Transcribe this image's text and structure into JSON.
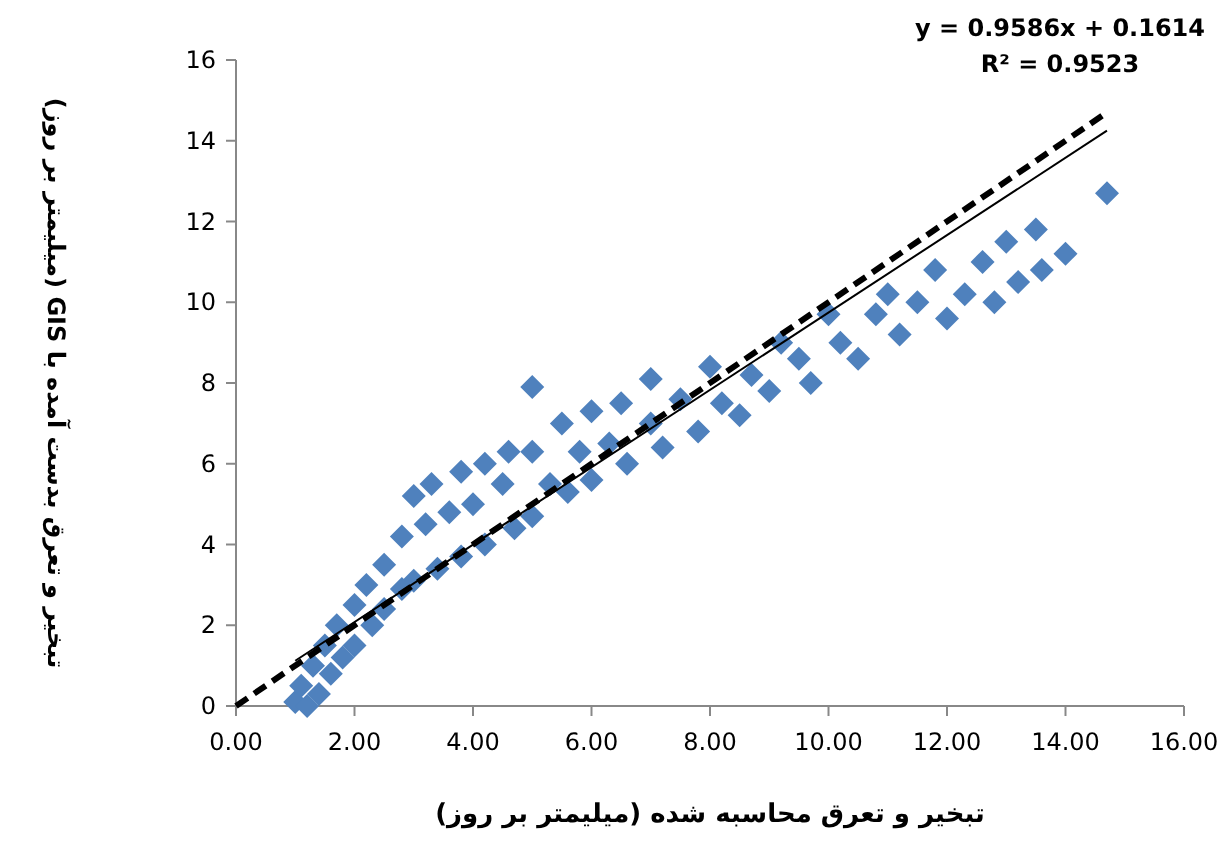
{
  "chart_data": {
    "type": "scatter",
    "xlabel": "تبخیر و تعرق محاسبه شده (میلیمتر بر روز)",
    "ylabel": "تبخیر و تعرق بدست آمده با GIS (میلیمتر بر روز)",
    "annotations": [
      "y = 0.9586x + 0.1614",
      "R² = 0.9523"
    ],
    "xlim": [
      0,
      16
    ],
    "ylim": [
      0,
      16
    ],
    "xticks": [
      {
        "value": 0,
        "label": "0.00"
      },
      {
        "value": 2,
        "label": "2.00"
      },
      {
        "value": 4,
        "label": "4.00"
      },
      {
        "value": 6,
        "label": "6.00"
      },
      {
        "value": 8,
        "label": "8.00"
      },
      {
        "value": 10,
        "label": "10.00"
      },
      {
        "value": 12,
        "label": "12.00"
      },
      {
        "value": 14,
        "label": "14.00"
      },
      {
        "value": 16,
        "label": "16.00"
      }
    ],
    "yticks": [
      0,
      2,
      4,
      6,
      8,
      10,
      12,
      14,
      16
    ],
    "grid": false,
    "series": [
      {
        "color": "#4f81bd",
        "marker": "diamond",
        "x": [
          1.0,
          1.1,
          1.2,
          1.3,
          1.4,
          1.5,
          1.6,
          1.7,
          1.8,
          2.0,
          2.0,
          2.2,
          2.3,
          2.5,
          2.5,
          2.8,
          2.8,
          3.0,
          3.0,
          3.2,
          3.3,
          3.4,
          3.6,
          3.8,
          3.8,
          4.0,
          4.2,
          4.2,
          4.5,
          4.6,
          4.7,
          5.0,
          5.0,
          5.0,
          5.3,
          5.5,
          5.6,
          5.8,
          6.0,
          6.0,
          6.3,
          6.5,
          6.6,
          7.0,
          7.0,
          7.2,
          7.5,
          7.8,
          8.0,
          8.2,
          8.5,
          8.7,
          9.0,
          9.2,
          9.5,
          9.7,
          10.0,
          10.2,
          10.5,
          10.8,
          11.0,
          11.2,
          11.5,
          11.8,
          12.0,
          12.3,
          12.6,
          12.8,
          13.0,
          13.2,
          13.5,
          13.6,
          14.0,
          14.7
        ],
        "values": [
          0.1,
          0.5,
          0.0,
          1.0,
          0.3,
          1.5,
          0.8,
          2.0,
          1.2,
          2.5,
          1.5,
          3.0,
          2.0,
          3.5,
          2.4,
          4.2,
          2.9,
          5.2,
          3.1,
          4.5,
          5.5,
          3.4,
          4.8,
          5.8,
          3.7,
          5.0,
          6.0,
          4.0,
          5.5,
          6.3,
          4.4,
          7.9,
          6.3,
          4.7,
          5.5,
          7.0,
          5.3,
          6.3,
          7.3,
          5.6,
          6.5,
          7.5,
          6.0,
          7.0,
          8.1,
          6.4,
          7.6,
          6.8,
          8.4,
          7.5,
          7.2,
          8.2,
          7.8,
          9.0,
          8.6,
          8.0,
          9.7,
          9.0,
          8.6,
          9.7,
          10.2,
          9.2,
          10.0,
          10.8,
          9.6,
          10.2,
          11.0,
          10.0,
          11.5,
          10.5,
          11.8,
          10.8,
          11.2,
          12.7
        ]
      },
      {
        "type": "line",
        "color": "#000000",
        "line_style": "solid",
        "x": [
          1.0,
          14.7
        ],
        "values": [
          1.12,
          14.25
        ]
      },
      {
        "type": "line",
        "color": "#000000",
        "line_style": "dashed",
        "x": [
          0,
          14.7
        ],
        "values": [
          0,
          14.7
        ]
      }
    ]
  }
}
